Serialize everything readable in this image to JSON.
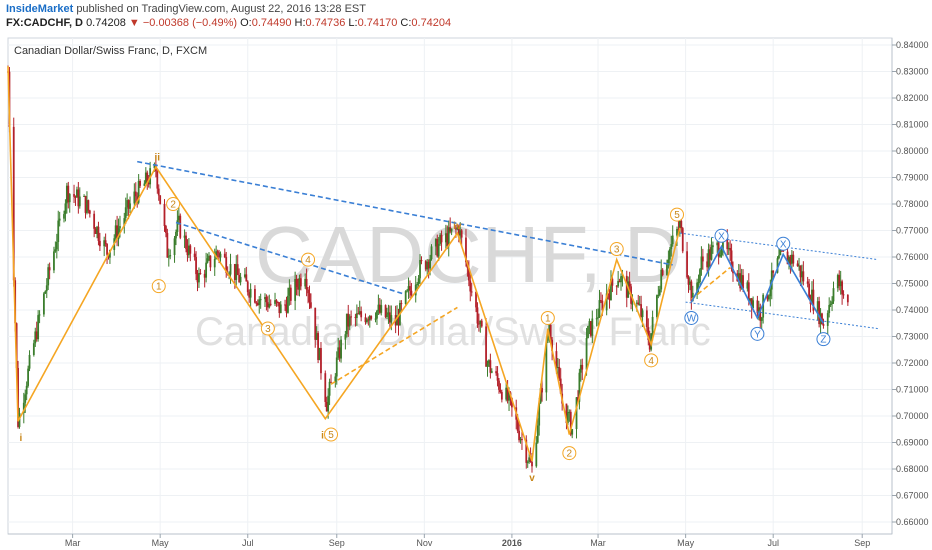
{
  "header": {
    "author": "InsideMarket",
    "published_text": "published on TradingView.com, August 22, 2016 13:28 EST",
    "symbol": "FX:CADCHF, D",
    "last": "0.74208",
    "arrow": "▼",
    "change": "−0.00368 (−0.49%)",
    "o_label": "O:",
    "o_value": "0.74490",
    "h_label": "H:",
    "h_value": "0.74736",
    "l_label": "L:",
    "l_value": "0.74170",
    "c_label": "C:",
    "c_value": "0.74204"
  },
  "colors": {
    "up": "#3a7d2c",
    "down": "#b3202a",
    "orange": "#f5a623",
    "blue": "#3a7fd5",
    "grid": "#eef1f4"
  },
  "chart_data": {
    "type": "candlestick",
    "title": "Canadian Dollar/Swiss Franc, D, FXCM",
    "watermark_symbol": "CADCHF, D",
    "watermark_name": "Canadian Dollar/Swiss Franc",
    "y_axis": {
      "min": 0.66,
      "max": 0.84,
      "ticks": [
        "0.66000",
        "0.67000",
        "0.68000",
        "0.69000",
        "0.70000",
        "0.71000",
        "0.72000",
        "0.73000",
        "0.74000",
        "0.75000",
        "0.76000",
        "0.77000",
        "0.78000",
        "0.79000",
        "0.80000",
        "0.81000",
        "0.82000",
        "0.83000",
        "0.84000"
      ]
    },
    "x_axis": {
      "start": "2015-01-15",
      "end": "2016-09-12",
      "ticks": [
        {
          "date": "2015-03-01",
          "label": "Mar"
        },
        {
          "date": "2015-05-01",
          "label": "May"
        },
        {
          "date": "2015-07-01",
          "label": "Jul"
        },
        {
          "date": "2015-09-01",
          "label": "Sep"
        },
        {
          "date": "2015-11-01",
          "label": "Nov"
        },
        {
          "date": "2016-01-01",
          "label": "2016"
        },
        {
          "date": "2016-03-01",
          "label": "Mar"
        },
        {
          "date": "2016-05-01",
          "label": "May"
        },
        {
          "date": "2016-07-01",
          "label": "Jul"
        },
        {
          "date": "2016-09-01",
          "label": "Sep"
        }
      ]
    },
    "price_path": [
      {
        "date": "2015-01-15",
        "price": 0.83
      },
      {
        "date": "2015-01-22",
        "price": 0.698
      },
      {
        "date": "2015-02-05",
        "price": 0.735
      },
      {
        "date": "2015-02-25",
        "price": 0.785
      },
      {
        "date": "2015-03-10",
        "price": 0.78
      },
      {
        "date": "2015-03-25",
        "price": 0.762
      },
      {
        "date": "2015-04-12",
        "price": 0.782
      },
      {
        "date": "2015-04-28",
        "price": 0.793
      },
      {
        "date": "2015-05-06",
        "price": 0.762
      },
      {
        "date": "2015-05-14",
        "price": 0.772
      },
      {
        "date": "2015-05-28",
        "price": 0.752
      },
      {
        "date": "2015-06-10",
        "price": 0.762
      },
      {
        "date": "2015-06-25",
        "price": 0.752
      },
      {
        "date": "2015-07-08",
        "price": 0.745
      },
      {
        "date": "2015-07-25",
        "price": 0.74
      },
      {
        "date": "2015-08-10",
        "price": 0.755
      },
      {
        "date": "2015-08-25",
        "price": 0.705
      },
      {
        "date": "2015-09-08",
        "price": 0.735
      },
      {
        "date": "2015-09-28",
        "price": 0.74
      },
      {
        "date": "2015-10-12",
        "price": 0.735
      },
      {
        "date": "2015-10-28",
        "price": 0.755
      },
      {
        "date": "2015-11-12",
        "price": 0.765
      },
      {
        "date": "2015-11-25",
        "price": 0.771
      },
      {
        "date": "2015-12-05",
        "price": 0.745
      },
      {
        "date": "2015-12-15",
        "price": 0.72
      },
      {
        "date": "2015-12-30",
        "price": 0.705
      },
      {
        "date": "2016-01-15",
        "price": 0.68
      },
      {
        "date": "2016-01-27",
        "price": 0.735
      },
      {
        "date": "2016-02-05",
        "price": 0.705
      },
      {
        "date": "2016-02-12",
        "price": 0.695
      },
      {
        "date": "2016-02-22",
        "price": 0.73
      },
      {
        "date": "2016-03-06",
        "price": 0.745
      },
      {
        "date": "2016-03-15",
        "price": 0.753
      },
      {
        "date": "2016-03-30",
        "price": 0.74
      },
      {
        "date": "2016-04-06",
        "price": 0.728
      },
      {
        "date": "2016-04-14",
        "price": 0.755
      },
      {
        "date": "2016-04-27",
        "price": 0.772
      },
      {
        "date": "2016-05-06",
        "price": 0.743
      },
      {
        "date": "2016-05-12",
        "price": 0.758
      },
      {
        "date": "2016-05-26",
        "price": 0.765
      },
      {
        "date": "2016-06-12",
        "price": 0.748
      },
      {
        "date": "2016-06-22",
        "price": 0.739
      },
      {
        "date": "2016-07-06",
        "price": 0.76
      },
      {
        "date": "2016-07-16",
        "price": 0.759
      },
      {
        "date": "2016-07-27",
        "price": 0.746
      },
      {
        "date": "2016-08-05",
        "price": 0.735
      },
      {
        "date": "2016-08-14",
        "price": 0.752
      },
      {
        "date": "2016-08-22",
        "price": 0.742
      }
    ],
    "wave_lines": [
      {
        "color": "orange",
        "dash": false,
        "points": [
          {
            "date": "2015-01-22",
            "price": 0.698
          },
          {
            "date": "2015-04-28",
            "price": 0.794
          },
          {
            "date": "2015-08-24",
            "price": 0.699
          },
          {
            "date": "2015-11-24",
            "price": 0.769
          },
          {
            "date": "2016-01-15",
            "price": 0.683
          },
          {
            "date": "2016-01-26",
            "price": 0.733
          },
          {
            "date": "2016-02-10",
            "price": 0.693
          },
          {
            "date": "2016-03-14",
            "price": 0.759
          },
          {
            "date": "2016-04-07",
            "price": 0.727
          },
          {
            "date": "2016-04-27",
            "price": 0.771
          }
        ]
      },
      {
        "color": "orange",
        "dash": false,
        "points": [
          {
            "date": "2015-01-15",
            "price": 0.832
          },
          {
            "date": "2015-01-22",
            "price": 0.698
          }
        ]
      },
      {
        "color": "orange",
        "dash": true,
        "points": [
          {
            "date": "2015-08-28",
            "price": 0.712
          },
          {
            "date": "2015-11-24",
            "price": 0.741
          }
        ]
      },
      {
        "color": "orange",
        "dash": true,
        "points": [
          {
            "date": "2016-05-05",
            "price": 0.744
          },
          {
            "date": "2016-06-01",
            "price": 0.756
          }
        ]
      },
      {
        "color": "blue",
        "dash": true,
        "points": [
          {
            "date": "2015-04-15",
            "price": 0.796
          },
          {
            "date": "2016-04-22",
            "price": 0.757
          }
        ]
      },
      {
        "color": "blue",
        "dash": true,
        "points": [
          {
            "date": "2015-05-12",
            "price": 0.773
          },
          {
            "date": "2015-10-18",
            "price": 0.746
          }
        ]
      },
      {
        "color": "blue",
        "dash": false,
        "points": [
          {
            "date": "2016-05-05",
            "price": 0.743
          },
          {
            "date": "2016-05-26",
            "price": 0.764
          },
          {
            "date": "2016-06-20",
            "price": 0.737
          },
          {
            "date": "2016-07-08",
            "price": 0.761
          },
          {
            "date": "2016-08-05",
            "price": 0.735
          }
        ]
      },
      {
        "color": "blue",
        "dash": true,
        "thin": true,
        "points": [
          {
            "date": "2016-04-27",
            "price": 0.769
          },
          {
            "date": "2016-09-12",
            "price": 0.759
          }
        ]
      },
      {
        "color": "blue",
        "dash": true,
        "thin": true,
        "points": [
          {
            "date": "2016-05-01",
            "price": 0.743
          },
          {
            "date": "2016-09-12",
            "price": 0.733
          }
        ]
      }
    ],
    "wave_labels": [
      {
        "text": "i",
        "date": "2015-01-24",
        "price": 0.692,
        "color": "orange",
        "circled": false
      },
      {
        "text": "ii",
        "date": "2015-04-29",
        "price": 0.798,
        "color": "orange",
        "circled": false
      },
      {
        "text": "iii",
        "date": "2015-08-24",
        "price": 0.693,
        "color": "orange",
        "circled": false
      },
      {
        "text": "iv",
        "date": "2015-11-24",
        "price": 0.772,
        "color": "orange",
        "circled": false
      },
      {
        "text": "v",
        "date": "2016-01-15",
        "price": 0.677,
        "color": "orange",
        "circled": false
      },
      {
        "text": "1",
        "date": "2015-04-30",
        "price": 0.749,
        "color": "orange",
        "circled": true
      },
      {
        "text": "2",
        "date": "2015-05-10",
        "price": 0.78,
        "color": "orange",
        "circled": true
      },
      {
        "text": "3",
        "date": "2015-07-15",
        "price": 0.733,
        "color": "orange",
        "circled": true
      },
      {
        "text": "4",
        "date": "2015-08-12",
        "price": 0.759,
        "color": "orange",
        "circled": true
      },
      {
        "text": "5",
        "date": "2015-08-28",
        "price": 0.693,
        "color": "orange",
        "circled": true
      },
      {
        "text": "1",
        "date": "2016-01-26",
        "price": 0.737,
        "color": "orange",
        "circled": true
      },
      {
        "text": "2",
        "date": "2016-02-10",
        "price": 0.686,
        "color": "orange",
        "circled": true
      },
      {
        "text": "3",
        "date": "2016-03-14",
        "price": 0.763,
        "color": "orange",
        "circled": true
      },
      {
        "text": "4",
        "date": "2016-04-07",
        "price": 0.721,
        "color": "orange",
        "circled": true
      },
      {
        "text": "5",
        "date": "2016-04-25",
        "price": 0.776,
        "color": "orange",
        "circled": true
      },
      {
        "text": "W",
        "date": "2016-05-05",
        "price": 0.737,
        "color": "blue",
        "circled": true
      },
      {
        "text": "X",
        "date": "2016-05-26",
        "price": 0.768,
        "color": "blue",
        "circled": true
      },
      {
        "text": "Y",
        "date": "2016-06-20",
        "price": 0.731,
        "color": "blue",
        "circled": true
      },
      {
        "text": "X",
        "date": "2016-07-08",
        "price": 0.765,
        "color": "blue",
        "circled": true
      },
      {
        "text": "Z",
        "date": "2016-08-05",
        "price": 0.729,
        "color": "blue",
        "circled": true
      }
    ]
  }
}
